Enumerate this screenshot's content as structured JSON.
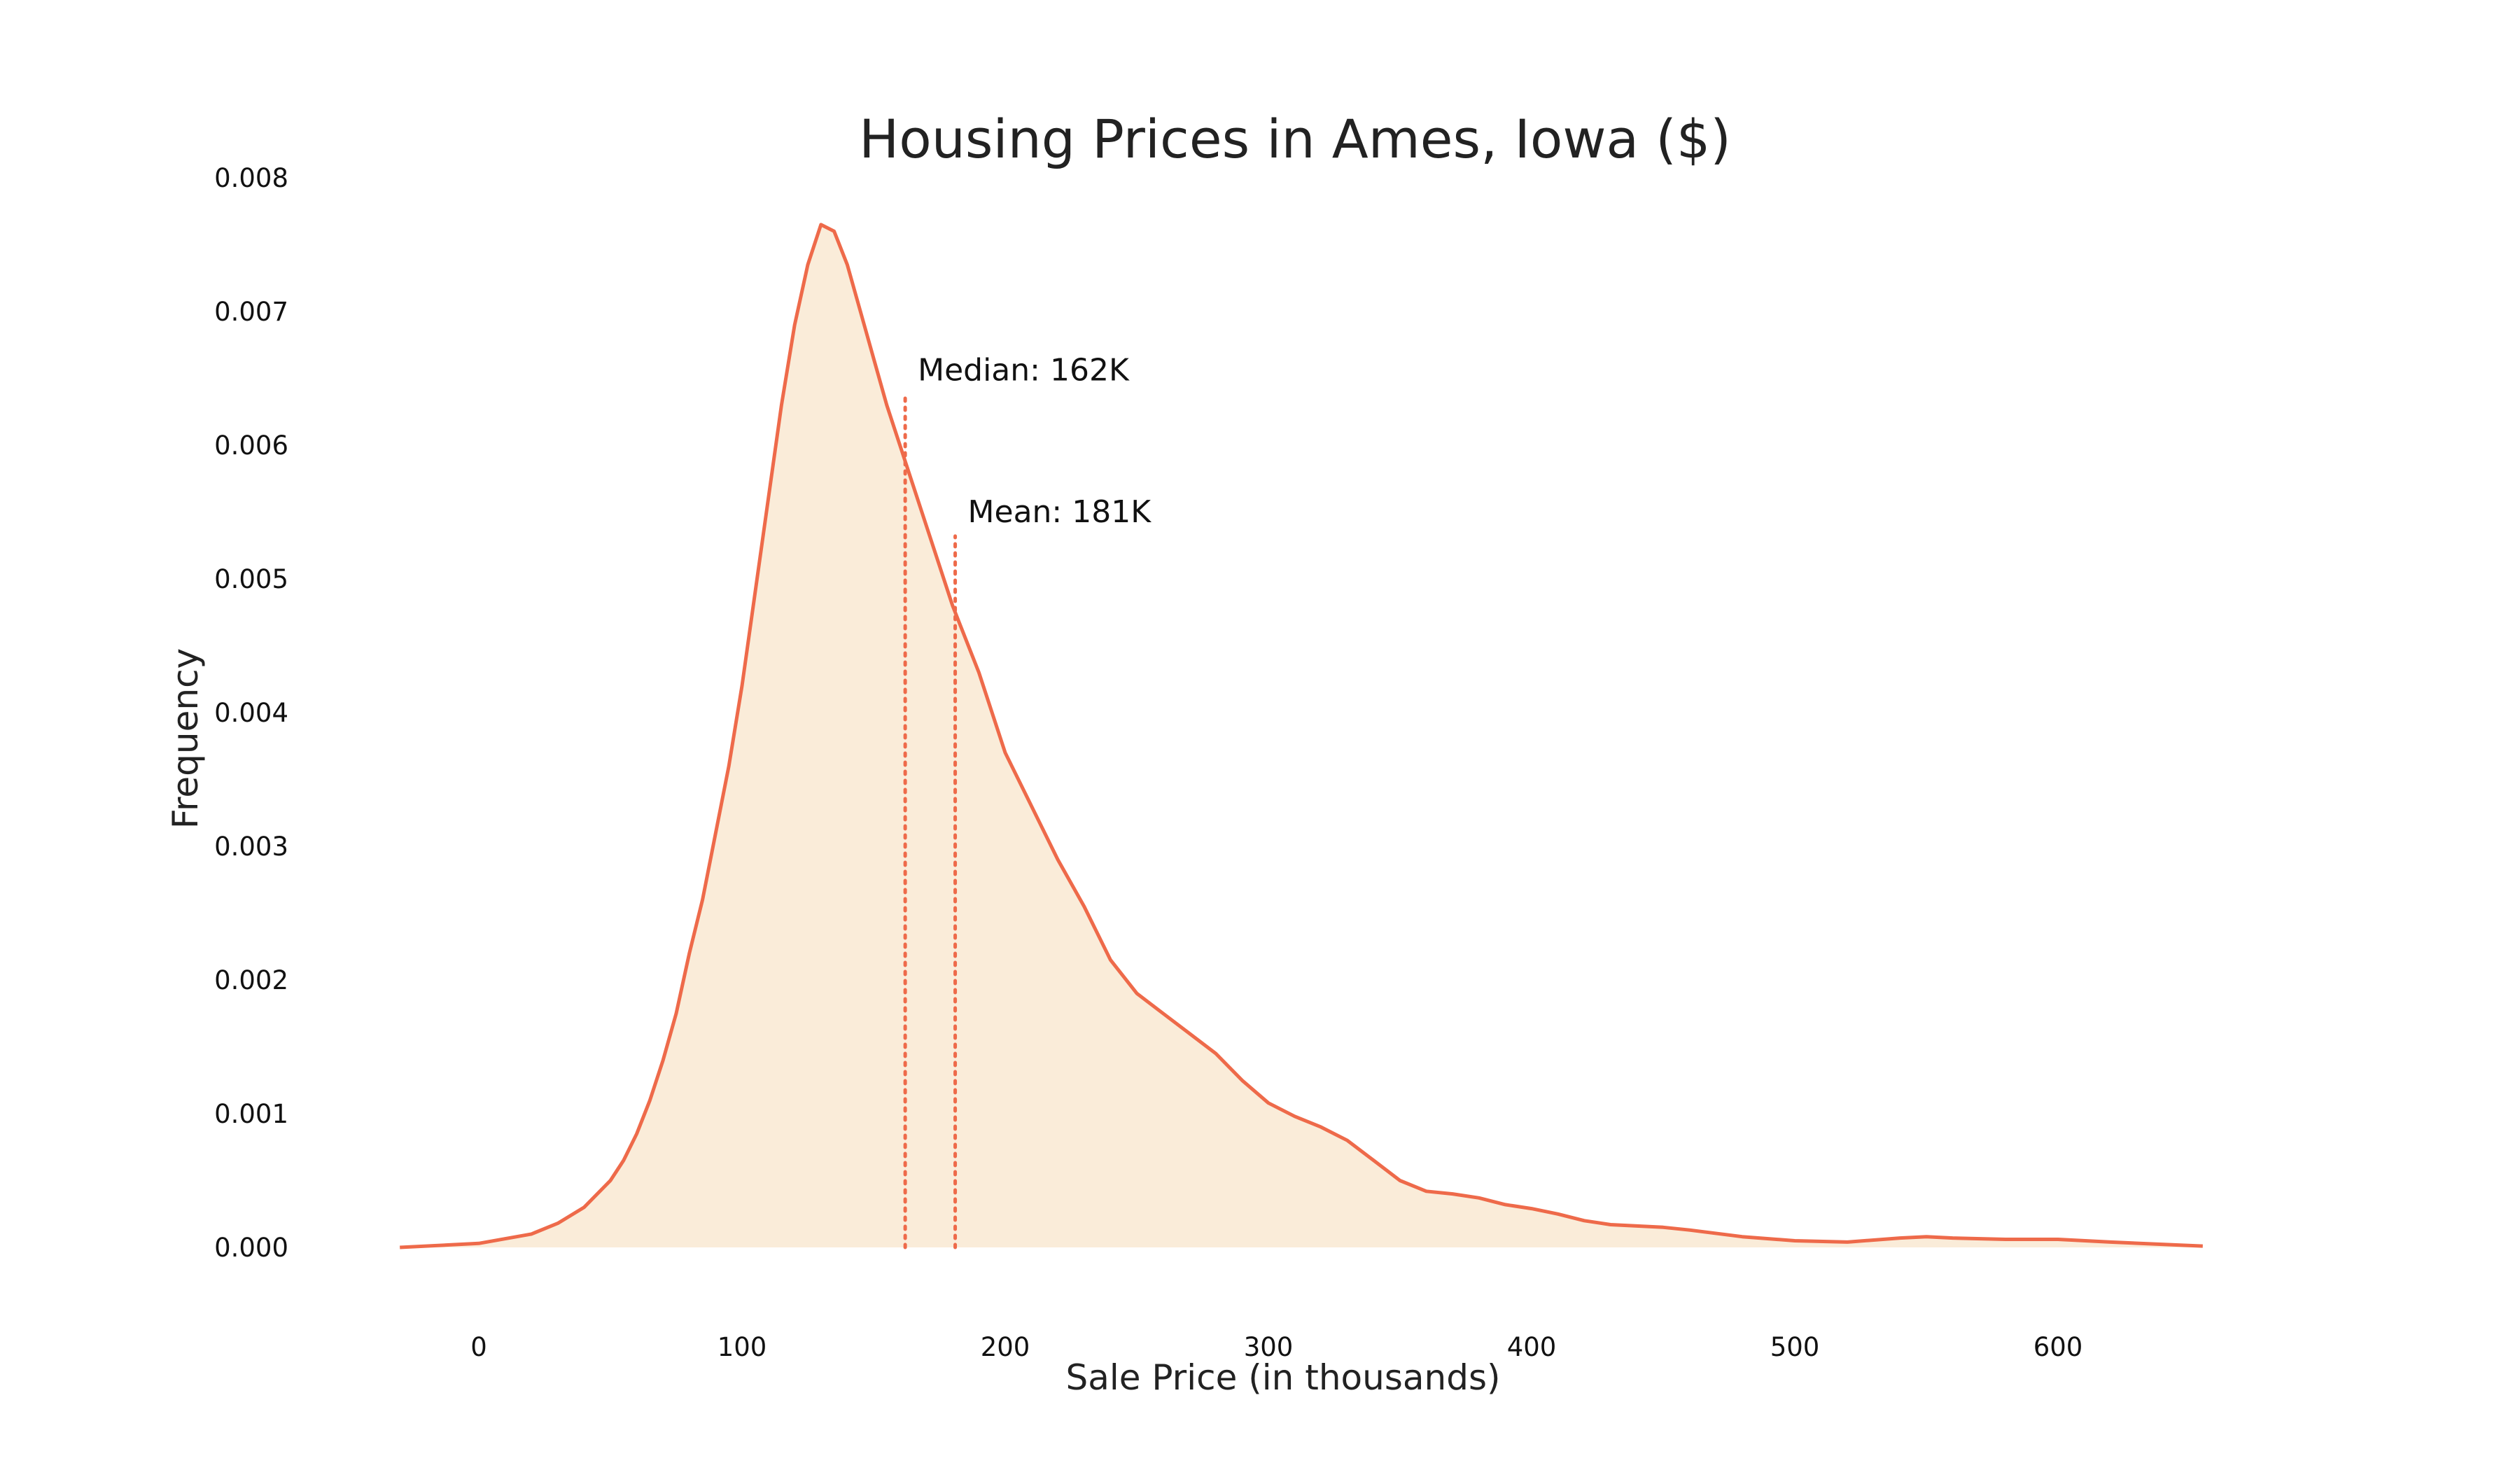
{
  "chart_data": {
    "type": "area",
    "title": "Housing Prices in Ames, Iowa ($)",
    "xlabel": "Sale Price (in thousands)",
    "ylabel": "Frequency",
    "xlim": [
      -38,
      666
    ],
    "ylim": [
      0,
      0.008
    ],
    "xticks": [
      "0",
      "100",
      "200",
      "300",
      "400",
      "500",
      "600"
    ],
    "yticks": [
      "0.000",
      "0.001",
      "0.002",
      "0.003",
      "0.004",
      "0.005",
      "0.006",
      "0.007",
      "0.008"
    ],
    "grid": false,
    "colors": {
      "line": "#ee6a4a",
      "fill": "#faecd9"
    },
    "series": [
      {
        "x": [
          -30,
          0,
          20,
          30,
          40,
          50,
          55,
          60,
          65,
          70,
          75,
          80,
          85,
          90,
          95,
          100,
          105,
          110,
          115,
          120,
          125,
          130,
          135,
          140,
          145,
          150,
          155,
          160,
          165,
          170,
          175,
          180,
          190,
          200,
          210,
          220,
          230,
          240,
          250,
          260,
          270,
          280,
          290,
          300,
          310,
          320,
          330,
          340,
          350,
          360,
          370,
          380,
          390,
          400,
          410,
          420,
          430,
          440,
          450,
          460,
          480,
          500,
          520,
          540,
          550,
          560,
          580,
          600,
          620,
          655
        ],
        "y": [
          0,
          3e-05,
          0.0001,
          0.00018,
          0.0003,
          0.0005,
          0.00065,
          0.00085,
          0.0011,
          0.0014,
          0.00175,
          0.0022,
          0.0026,
          0.0031,
          0.0036,
          0.0042,
          0.0049,
          0.0056,
          0.0063,
          0.0069,
          0.00735,
          0.00765,
          0.0076,
          0.00735,
          0.007,
          0.00665,
          0.0063,
          0.006,
          0.0057,
          0.0054,
          0.0051,
          0.0048,
          0.0043,
          0.0037,
          0.0033,
          0.0029,
          0.00255,
          0.00215,
          0.0019,
          0.00175,
          0.0016,
          0.00145,
          0.00125,
          0.00108,
          0.00098,
          0.0009,
          0.0008,
          0.00065,
          0.0005,
          0.00042,
          0.0004,
          0.00037,
          0.00032,
          0.00029,
          0.00025,
          0.0002,
          0.00017,
          0.00016,
          0.00015,
          0.00013,
          8e-05,
          5e-05,
          4e-05,
          7e-05,
          8e-05,
          7e-05,
          6e-05,
          6e-05,
          4e-05,
          1e-05
        ]
      }
    ],
    "annotations": [
      {
        "label": "Median: 162K",
        "x": 162,
        "y": 0.00638
      },
      {
        "label": "Mean: 181K",
        "x": 181,
        "y": 0.00532
      }
    ]
  }
}
